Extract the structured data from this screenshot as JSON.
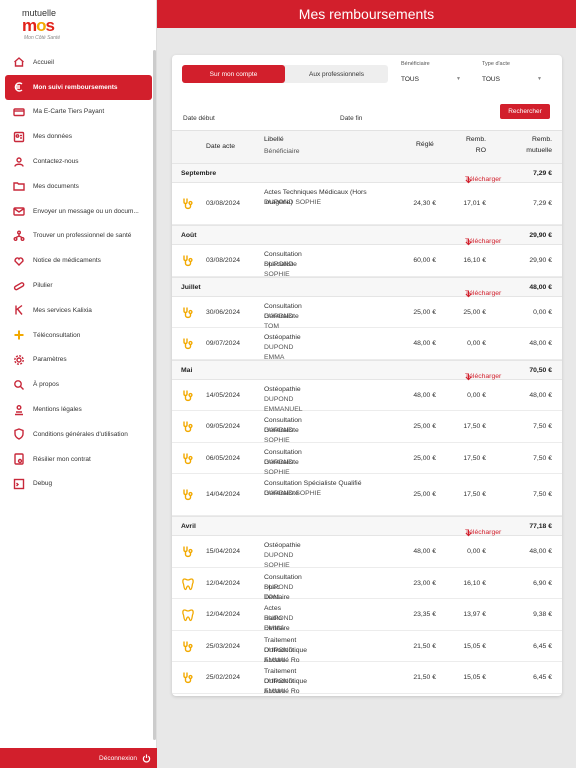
{
  "app": {
    "logo_line1": "mutuelle",
    "logo_brand_m": "m",
    "logo_brand_o": "o",
    "logo_brand_s": "s",
    "logo_tagline": "Mon Côté Santé",
    "title": "Mes remboursements"
  },
  "sidebar": {
    "items": [
      {
        "label": "Accueil",
        "icon": "home-icon"
      },
      {
        "label": "Mon suivi remboursements",
        "icon": "euro-icon"
      },
      {
        "label": "Ma E-Carte Tiers Payant",
        "icon": "card-icon"
      },
      {
        "label": "Mes données",
        "icon": "user-data-icon"
      },
      {
        "label": "Contactez-nous",
        "icon": "contact-icon"
      },
      {
        "label": "Mes documents",
        "icon": "folder-icon"
      },
      {
        "label": "Envoyer un message ou un docum...",
        "icon": "mail-icon"
      },
      {
        "label": "Trouver un professionnel de santé",
        "icon": "network-icon"
      },
      {
        "label": "Notice de médicaments",
        "icon": "pill-notice-icon"
      },
      {
        "label": "Pilulier",
        "icon": "pills-icon"
      },
      {
        "label": "Mes services Kalixia",
        "icon": "kalixia-icon"
      },
      {
        "label": "Téléconsultation",
        "icon": "plus-icon"
      },
      {
        "label": "Paramètres",
        "icon": "gear-icon"
      },
      {
        "label": "À propos",
        "icon": "about-icon"
      },
      {
        "label": "Mentions légales",
        "icon": "legal-icon"
      },
      {
        "label": "Conditions générales d'utilisation",
        "icon": "shield-icon"
      },
      {
        "label": "Résilier mon contrat",
        "icon": "cancel-contract-icon"
      },
      {
        "label": "Debug",
        "icon": "debug-icon"
      }
    ],
    "active_index": 1,
    "logout_label": "Déconnexion"
  },
  "filters": {
    "tab_own": "Sur mon compte",
    "tab_pros": "Aux professionnels",
    "beneficiaire_label": "Bénéficiaire",
    "beneficiaire_value": "TOUS",
    "type_label": "Type d'acte",
    "type_value": "TOUS",
    "date_debut": "Date début",
    "date_fin": "Date fin",
    "search_button": "Rechercher"
  },
  "table": {
    "headers": {
      "date": "Date acte",
      "libelle": "Libellé",
      "beneficiaire": "Bénéficiaire",
      "regle": "Réglé",
      "remb_ro_1": "Remb.",
      "remb_ro_2": "RO",
      "remb_mut_1": "Remb.",
      "remb_mut_2": "mutuelle"
    },
    "download_label": "Télécharger",
    "months": [
      {
        "name": "Septembre",
        "total": "7,29 €",
        "rows": [
          {
            "icon": "stethoscope-icon",
            "date": "03/08/2024",
            "libelle": "Actes Techniques Médicaux (Hors Imagerie)",
            "benef": "DUPOND SOPHIE",
            "regle": "24,30 €",
            "ro": "17,01 €",
            "mut": "7,29 €",
            "tall": true
          }
        ]
      },
      {
        "name": "Août",
        "total": "29,90 €",
        "rows": [
          {
            "icon": "stethoscope-icon",
            "date": "03/08/2024",
            "libelle": "Consultation Spécialiste",
            "benef": "DUPOND SOPHIE",
            "regle": "60,00 €",
            "ro": "16,10 €",
            "mut": "29,90 €"
          }
        ]
      },
      {
        "name": "Juillet",
        "total": "48,00 €",
        "rows": [
          {
            "icon": "stethoscope-icon",
            "date": "30/06/2024",
            "libelle": "Consultation Généraliste",
            "benef": "DUPOND TOM",
            "regle": "25,00 €",
            "ro": "25,00 €",
            "mut": "0,00 €"
          },
          {
            "icon": "stethoscope-icon",
            "date": "09/07/2024",
            "libelle": "Ostéopathie",
            "benef": "DUPOND EMMA",
            "regle": "48,00 €",
            "ro": "0,00 €",
            "mut": "48,00 €"
          }
        ]
      },
      {
        "name": "Mai",
        "total": "70,50 €",
        "rows": [
          {
            "icon": "stethoscope-icon",
            "date": "14/05/2024",
            "libelle": "Ostéopathie",
            "benef": "DUPOND EMMANUEL",
            "regle": "48,00 €",
            "ro": "0,00 €",
            "mut": "48,00 €"
          },
          {
            "icon": "stethoscope-icon",
            "date": "09/05/2024",
            "libelle": "Consultation Généraliste",
            "benef": "DUPOND SOPHIE",
            "regle": "25,00 €",
            "ro": "17,50 €",
            "mut": "7,50 €"
          },
          {
            "icon": "stethoscope-icon",
            "date": "06/05/2024",
            "libelle": "Consultation Généraliste",
            "benef": "DUPOND SOPHIE",
            "regle": "25,00 €",
            "ro": "17,50 €",
            "mut": "7,50 €"
          },
          {
            "icon": "stethoscope-icon",
            "date": "14/04/2024",
            "libelle": "Consultation Spécialiste Qualifié Généraliste",
            "benef": "DUPOND SOPHIE",
            "regle": "25,00 €",
            "ro": "17,50 €",
            "mut": "7,50 €",
            "tall": true
          }
        ]
      },
      {
        "name": "Avril",
        "total": "77,18 €",
        "rows": [
          {
            "icon": "stethoscope-icon",
            "date": "15/04/2024",
            "libelle": "Ostéopathie",
            "benef": "DUPOND SOPHIE",
            "regle": "48,00 €",
            "ro": "0,00 €",
            "mut": "48,00 €"
          },
          {
            "icon": "tooth-icon",
            "date": "12/04/2024",
            "libelle": "Consultation Spéc Dentaire",
            "benef": "DUPOND TOM",
            "regle": "23,00 €",
            "ro": "16,10 €",
            "mut": "6,90 €"
          },
          {
            "icon": "tooth-icon",
            "date": "12/04/2024",
            "libelle": "Actes Radio Dentaire",
            "benef": "DUPOND EMMA",
            "regle": "23,35 €",
            "ro": "13,97 €",
            "mut": "9,38 €"
          },
          {
            "icon": "stethoscope-icon",
            "date": "25/03/2024",
            "libelle": "Traitement Orthodontique Accordé Ro",
            "benef": "DUPOND EMMA",
            "regle": "21,50 €",
            "ro": "15,05 €",
            "mut": "6,45 €"
          },
          {
            "icon": "stethoscope-icon",
            "date": "25/02/2024",
            "libelle": "Traitement Orthodontique Accordé Ro",
            "benef": "DUPOND EMMA",
            "regle": "21,50 €",
            "ro": "15,05 €",
            "mut": "6,45 €"
          }
        ]
      }
    ]
  },
  "colors": {
    "brand_red": "#d21f2c",
    "icon_orange": "#f2a900"
  }
}
